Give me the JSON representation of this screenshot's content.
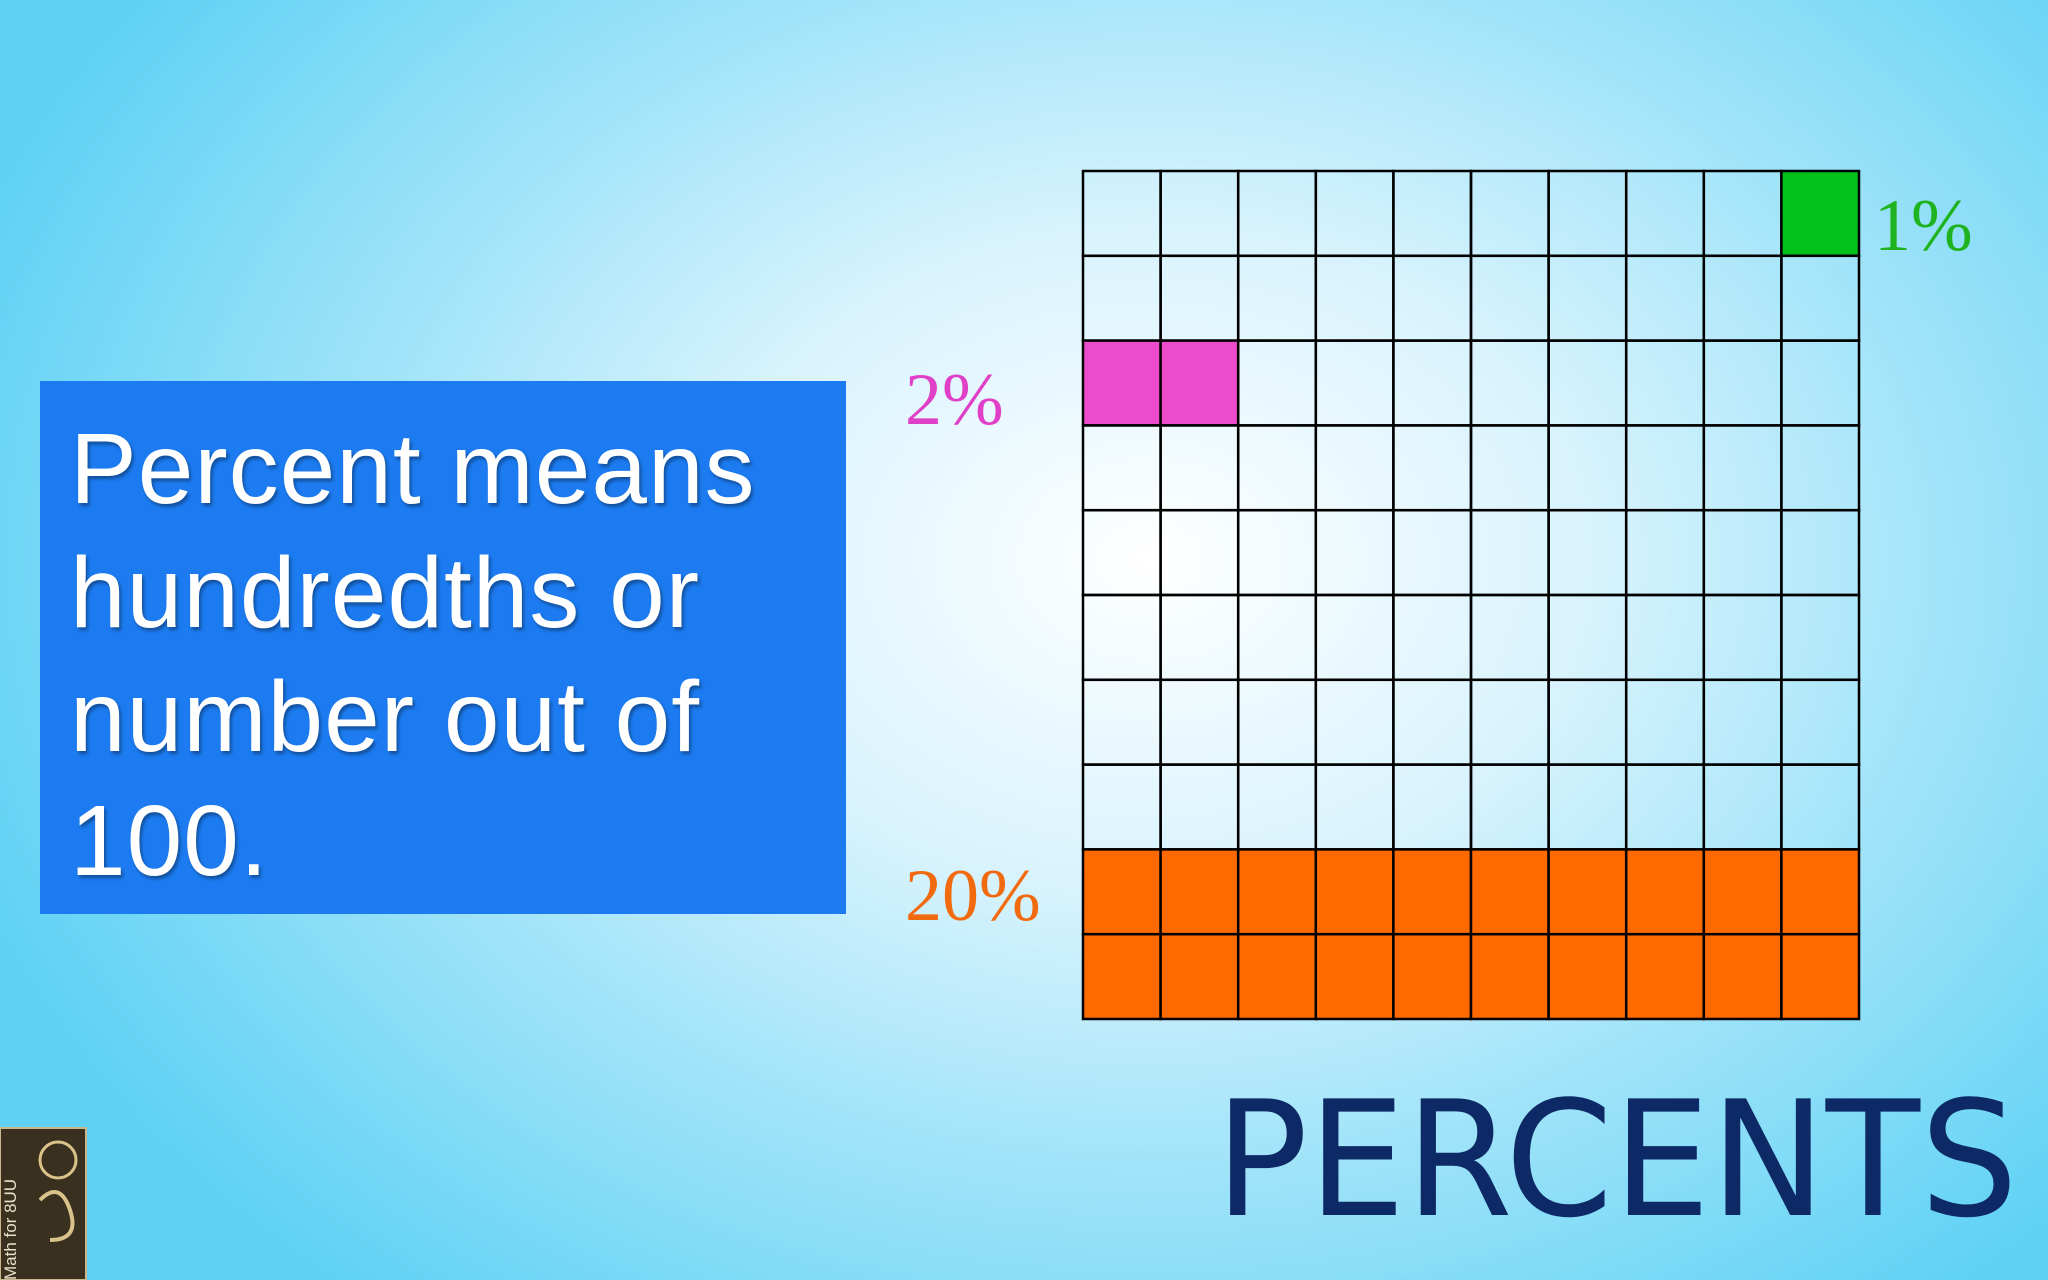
{
  "slide": {
    "title": "PERCENTS",
    "definition_lines": [
      "Percent means",
      "hundredths or",
      "number out of",
      "100."
    ],
    "grid_labels": {
      "one": "1%",
      "two": "2%",
      "twenty": "20%"
    },
    "logo_text": "Math for 8UU"
  }
}
